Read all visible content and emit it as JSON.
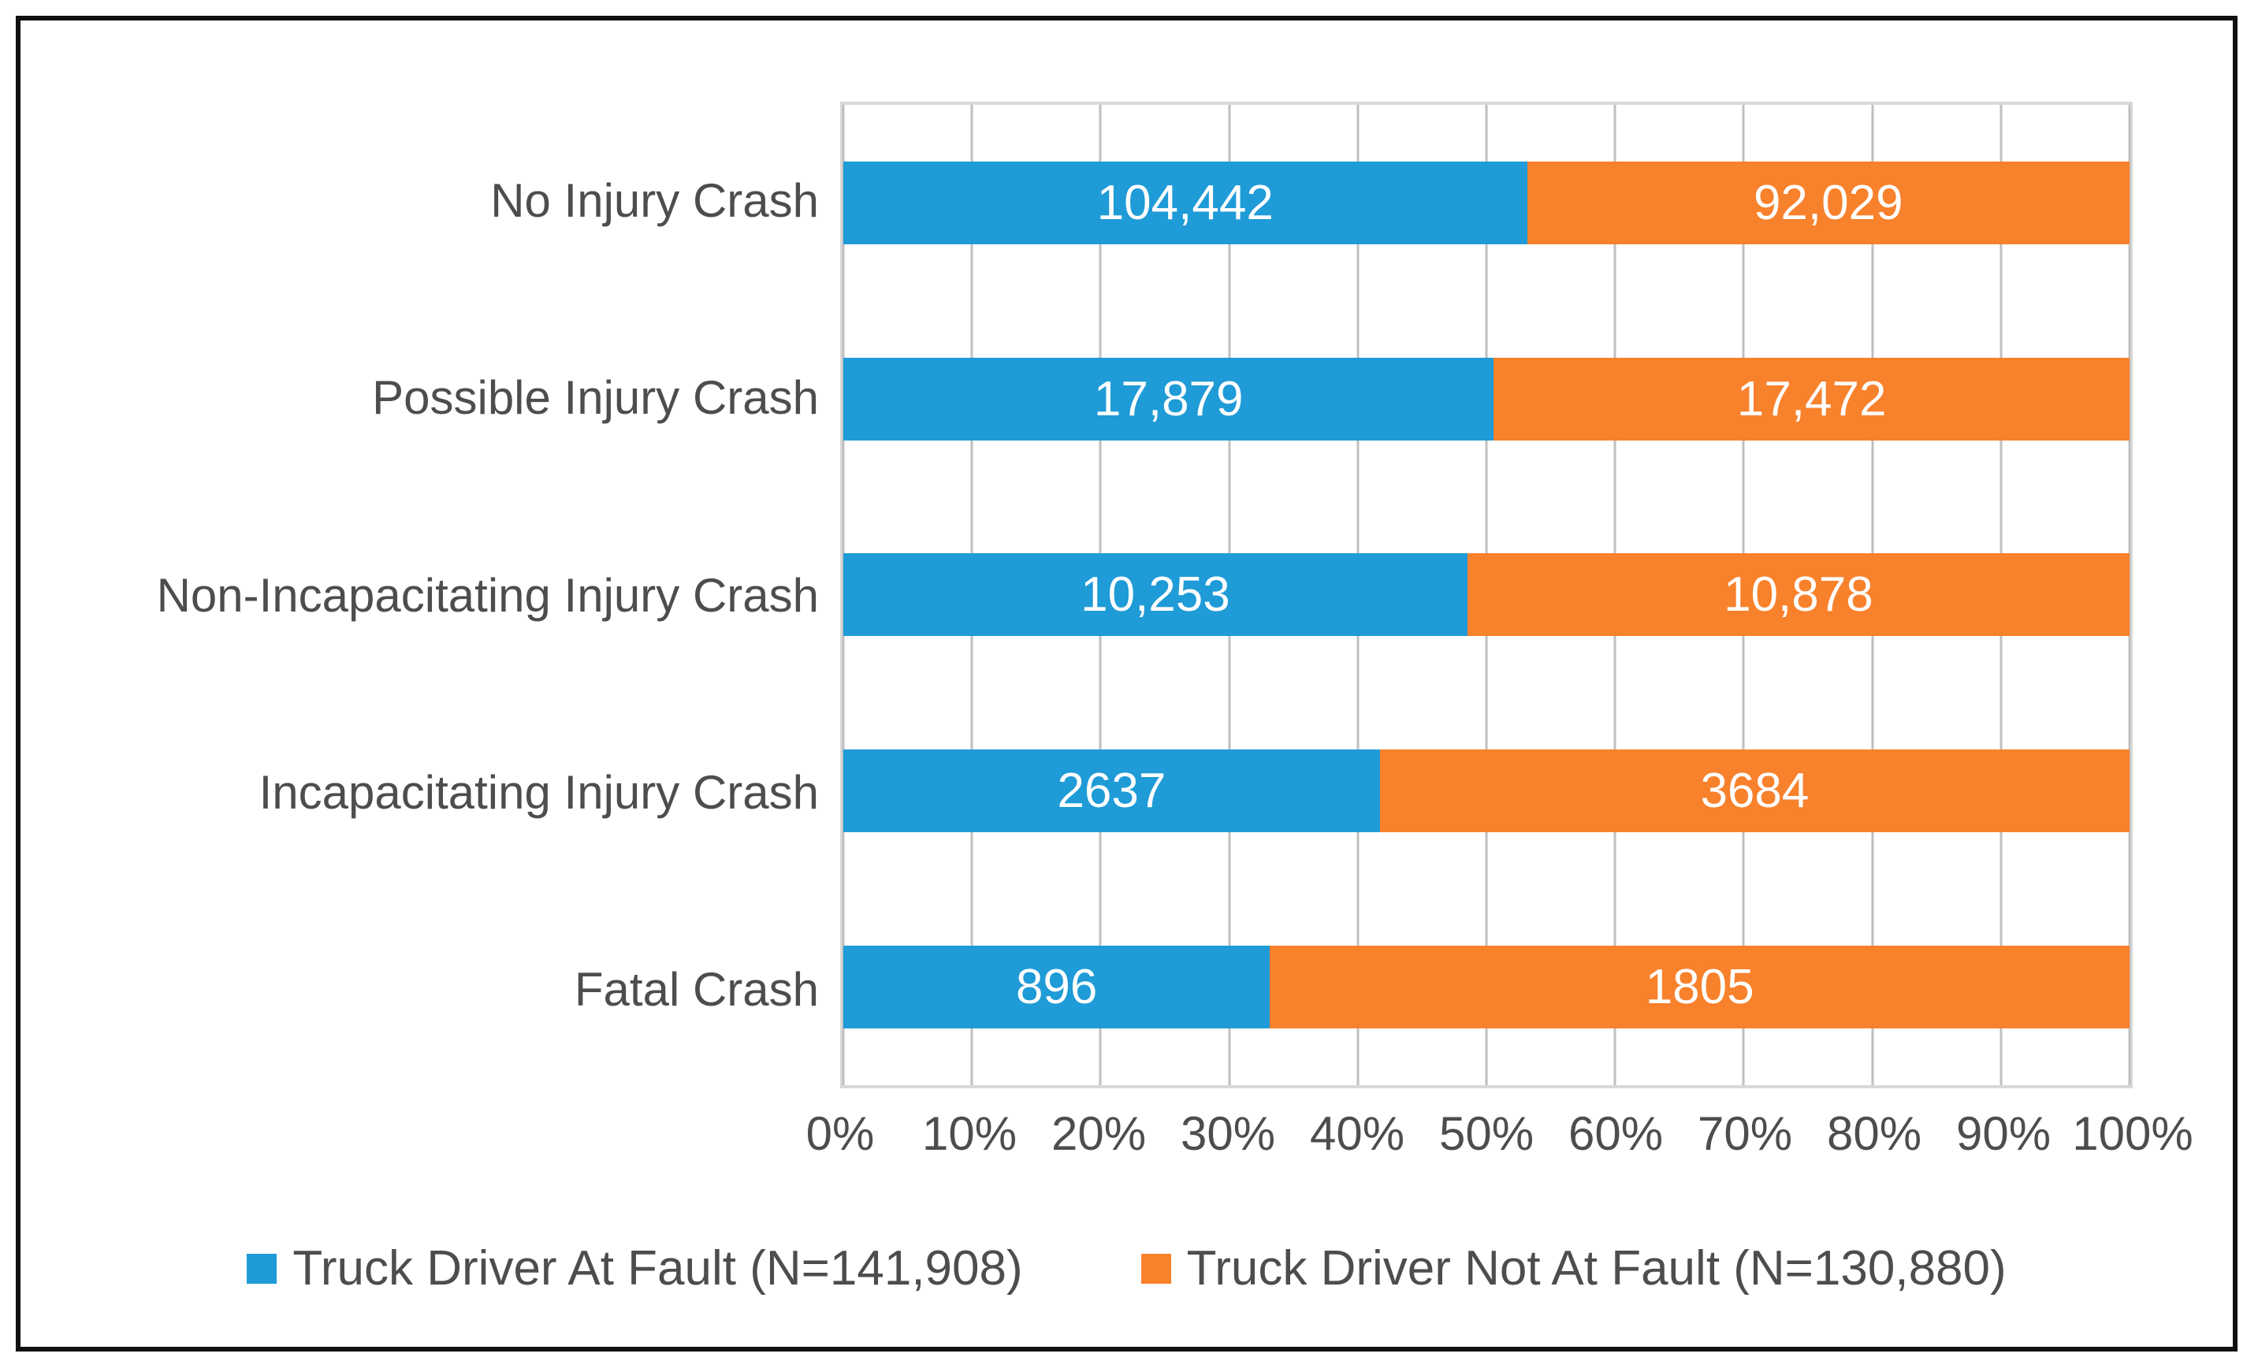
{
  "chart_data": {
    "type": "bar",
    "subtype": "horizontal-stacked-100-percent",
    "title": "",
    "xlabel": "",
    "ylabel": "",
    "grid": "vertical",
    "legend_position": "bottom",
    "categories": [
      "No Injury Crash",
      "Possible Injury Crash",
      "Non-Incapacitating Injury Crash",
      "Incapacitating Injury Crash",
      "Fatal Crash"
    ],
    "series": [
      {
        "name": "Truck Driver At Fault (N=141,908)",
        "color": "#1f9bd7",
        "values": [
          104442,
          17879,
          10253,
          2637,
          896
        ],
        "labels": [
          "104,442",
          "17,879",
          "10,253",
          "2637",
          "896"
        ]
      },
      {
        "name": "Truck Driver Not At Fault (N=130,880)",
        "color": "#f8812c",
        "values": [
          92029,
          17472,
          10878,
          3684,
          1805
        ],
        "labels": [
          "92,029",
          "17,472",
          "10,878",
          "3684",
          "1805"
        ]
      }
    ],
    "x_axis": {
      "min": 0,
      "max": 100,
      "ticks": [
        "0%",
        "10%",
        "20%",
        "30%",
        "40%",
        "50%",
        "60%",
        "70%",
        "80%",
        "90%",
        "100%"
      ]
    },
    "colors": {
      "gridline": "#bfbfbf",
      "plot_border": "#d9d9d9",
      "axis_text": "#4d4d4d",
      "bar_label_text": "#ffffff",
      "frame_border": "#101010"
    }
  }
}
